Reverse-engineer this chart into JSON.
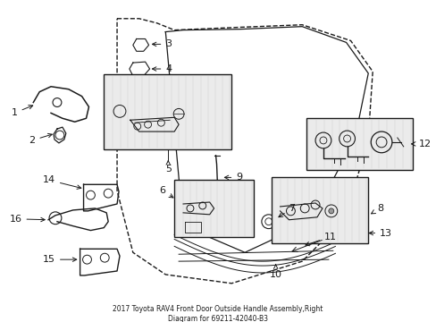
{
  "title": "2017 Toyota RAV4 Front Door Outside Handle Assembly,Right\nDiagram for 69211-42040-B3",
  "bg_color": "#ffffff",
  "line_color": "#1a1a1a",
  "box_bg": "#ebebeb",
  "figsize": [
    4.89,
    3.6
  ],
  "dpi": 100
}
